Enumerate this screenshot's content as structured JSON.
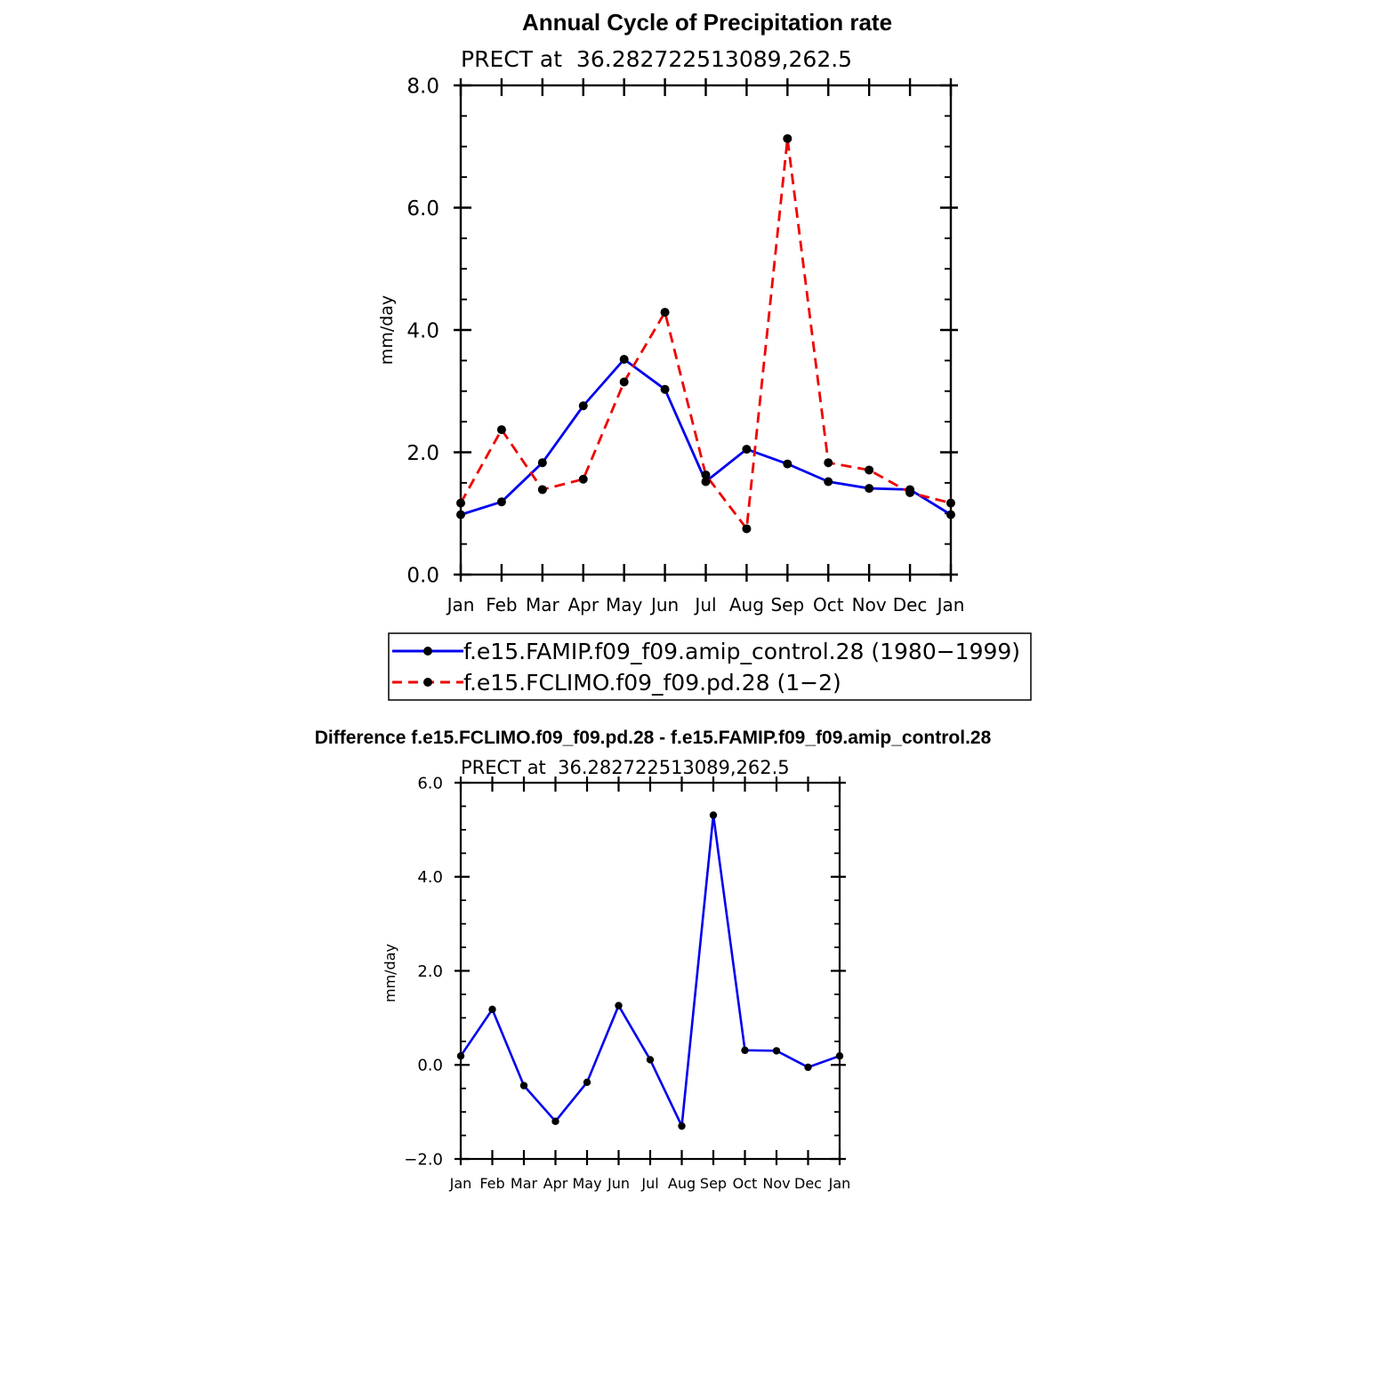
{
  "chart_data": [
    {
      "type": "line",
      "title": "Annual Cycle of Precipitation rate",
      "subtitle": "PRECT at  36.282722513089,262.5",
      "xlabel": "",
      "ylabel": "mm/day",
      "categories": [
        "Jan",
        "Feb",
        "Mar",
        "Apr",
        "May",
        "Jun",
        "Jul",
        "Aug",
        "Sep",
        "Oct",
        "Nov",
        "Dec",
        "Jan"
      ],
      "ylim": [
        0,
        8
      ],
      "yticks": [
        0,
        2,
        4,
        6,
        8
      ],
      "ytick_labels": [
        "0.0",
        "2.0",
        "4.0",
        "6.0",
        "8.0"
      ],
      "series": [
        {
          "name": "f.e15.FAMIP.f09_f09.amip_control.28 (1980−1999)",
          "color": "#0000ee",
          "dash": "solid",
          "values": [
            0.98,
            1.19,
            1.83,
            2.76,
            3.52,
            3.03,
            1.52,
            2.05,
            1.81,
            1.52,
            1.41,
            1.39,
            0.98
          ]
        },
        {
          "name": "f.e15.FCLIMO.f09_f09.pd.28 (1−2)",
          "color": "#ee0000",
          "dash": "dashed",
          "values": [
            1.17,
            2.37,
            1.39,
            1.56,
            3.15,
            4.29,
            1.63,
            0.75,
            7.13,
            1.83,
            1.71,
            1.34,
            1.17
          ]
        }
      ],
      "legend": "bottom"
    },
    {
      "type": "line",
      "title": "Difference f.e15.FCLIMO.f09_f09.pd.28 - f.e15.FAMIP.f09_f09.amip_control.28",
      "subtitle": "PRECT at  36.282722513089,262.5",
      "xlabel": "",
      "ylabel": "mm/day",
      "categories": [
        "Jan",
        "Feb",
        "Mar",
        "Apr",
        "May",
        "Jun",
        "Jul",
        "Aug",
        "Sep",
        "Oct",
        "Nov",
        "Dec",
        "Jan"
      ],
      "ylim": [
        -2,
        6
      ],
      "yticks": [
        -2,
        0,
        2,
        4,
        6
      ],
      "ytick_labels": [
        "−2.0",
        "0.0",
        "2.0",
        "4.0",
        "6.0"
      ],
      "series": [
        {
          "name": "difference",
          "color": "#0000ee",
          "dash": "solid",
          "values": [
            0.19,
            1.18,
            -0.44,
            -1.2,
            -0.37,
            1.26,
            0.11,
            -1.3,
            5.31,
            0.31,
            0.3,
            -0.05,
            0.19
          ]
        }
      ]
    }
  ]
}
